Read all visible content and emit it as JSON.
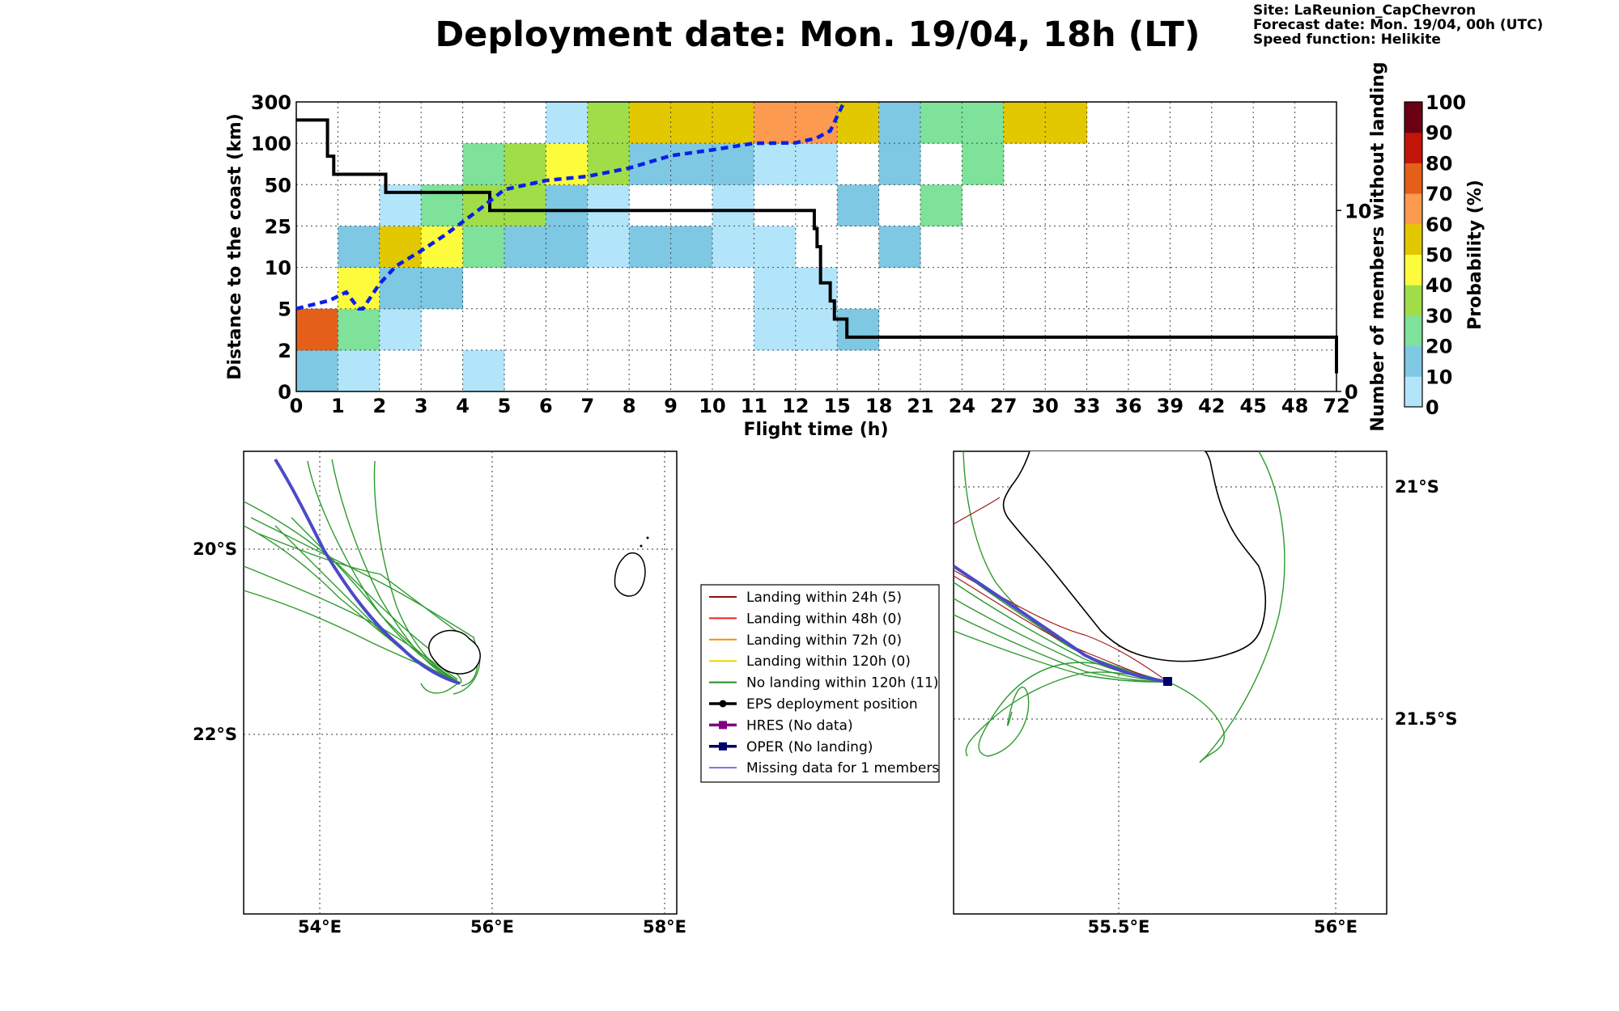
{
  "title": "Deployment date: Mon. 19/04, 18h (LT)",
  "info": {
    "site": "Site: LaReunion_CapChevron",
    "forecast": "Forecast date: Mon. 19/04, 00h (UTC)",
    "speed": "Speed function: Helikite"
  },
  "chart_data": [
    {
      "type": "heatmap",
      "xlabel": "Flight time (h)",
      "ylabel": "Distance to the coast (km)",
      "y2label": "Number of members without landing",
      "x_ticks": [
        "0",
        "1",
        "2",
        "3",
        "4",
        "5",
        "6",
        "7",
        "8",
        "9",
        "10",
        "11",
        "12",
        "15",
        "18",
        "21",
        "24",
        "27",
        "30",
        "33",
        "36",
        "39",
        "42",
        "45",
        "48",
        "72"
      ],
      "y_ticks": [
        "0",
        "2",
        "5",
        "10",
        "25",
        "50",
        "100",
        "300"
      ],
      "y2_ticks": [
        "0",
        "10"
      ],
      "y2_range": [
        0,
        16
      ],
      "grid": true,
      "colorbar": {
        "label": "Probability (%)",
        "ticks": [
          "0",
          "10",
          "20",
          "30",
          "40",
          "50",
          "60",
          "70",
          "80",
          "90",
          "100"
        ],
        "colors": [
          "#b3e5fa",
          "#7ec8e3",
          "#7ee29a",
          "#a0dd49",
          "#fcfc3c",
          "#e2c800",
          "#fc9a50",
          "#e4601a",
          "#c21507",
          "#6b0014"
        ]
      },
      "cells": [
        {
          "x": 0,
          "y": 0,
          "p": 10
        },
        {
          "x": 0,
          "y": 1,
          "p": 70
        },
        {
          "x": 1,
          "y": 0,
          "p": 0
        },
        {
          "x": 1,
          "y": 1,
          "p": 20
        },
        {
          "x": 1,
          "y": 2,
          "p": 40
        },
        {
          "x": 1,
          "y": 3,
          "p": 10
        },
        {
          "x": 2,
          "y": 1,
          "p": 0
        },
        {
          "x": 2,
          "y": 2,
          "p": 10
        },
        {
          "x": 2,
          "y": 3,
          "p": 50
        },
        {
          "x": 2,
          "y": 4,
          "p": 0
        },
        {
          "x": 3,
          "y": 2,
          "p": 10
        },
        {
          "x": 3,
          "y": 3,
          "p": 40
        },
        {
          "x": 3,
          "y": 4,
          "p": 20
        },
        {
          "x": 4,
          "y": 0,
          "p": 0
        },
        {
          "x": 4,
          "y": 3,
          "p": 20
        },
        {
          "x": 4,
          "y": 4,
          "p": 30
        },
        {
          "x": 4,
          "y": 5,
          "p": 20
        },
        {
          "x": 5,
          "y": 3,
          "p": 10
        },
        {
          "x": 5,
          "y": 4,
          "p": 30
        },
        {
          "x": 5,
          "y": 5,
          "p": 30
        },
        {
          "x": 6,
          "y": 3,
          "p": 10
        },
        {
          "x": 6,
          "y": 4,
          "p": 10
        },
        {
          "x": 6,
          "y": 5,
          "p": 40
        },
        {
          "x": 6,
          "y": 6,
          "p": 0
        },
        {
          "x": 7,
          "y": 3,
          "p": 0
        },
        {
          "x": 7,
          "y": 4,
          "p": 0
        },
        {
          "x": 7,
          "y": 5,
          "p": 30
        },
        {
          "x": 7,
          "y": 6,
          "p": 30
        },
        {
          "x": 8,
          "y": 3,
          "p": 10
        },
        {
          "x": 8,
          "y": 5,
          "p": 10
        },
        {
          "x": 8,
          "y": 6,
          "p": 50
        },
        {
          "x": 9,
          "y": 3,
          "p": 10
        },
        {
          "x": 9,
          "y": 5,
          "p": 10
        },
        {
          "x": 9,
          "y": 6,
          "p": 50
        },
        {
          "x": 10,
          "y": 3,
          "p": 0
        },
        {
          "x": 10,
          "y": 4,
          "p": 0
        },
        {
          "x": 10,
          "y": 5,
          "p": 10
        },
        {
          "x": 10,
          "y": 6,
          "p": 50
        },
        {
          "x": 11,
          "y": 1,
          "p": 0
        },
        {
          "x": 11,
          "y": 2,
          "p": 0
        },
        {
          "x": 11,
          "y": 3,
          "p": 0
        },
        {
          "x": 11,
          "y": 5,
          "p": 0
        },
        {
          "x": 11,
          "y": 6,
          "p": 60
        },
        {
          "x": 12,
          "y": 1,
          "p": 0
        },
        {
          "x": 12,
          "y": 2,
          "p": 0
        },
        {
          "x": 12,
          "y": 5,
          "p": 0
        },
        {
          "x": 12,
          "y": 6,
          "p": 60
        },
        {
          "x": 13,
          "y": 1,
          "p": 10
        },
        {
          "x": 13,
          "y": 4,
          "p": 10
        },
        {
          "x": 13,
          "y": 6,
          "p": 50
        },
        {
          "x": 14,
          "y": 3,
          "p": 10
        },
        {
          "x": 14,
          "y": 5,
          "p": 10
        },
        {
          "x": 14,
          "y": 6,
          "p": 10
        },
        {
          "x": 15,
          "y": 4,
          "p": 20
        },
        {
          "x": 15,
          "y": 6,
          "p": 20
        },
        {
          "x": 16,
          "y": 5,
          "p": 20
        },
        {
          "x": 16,
          "y": 6,
          "p": 20
        },
        {
          "x": 17,
          "y": 6,
          "p": 50
        },
        {
          "x": 18,
          "y": 6,
          "p": 50
        }
      ],
      "members_without_landing": {
        "name": "Number of members without landing",
        "x": [
          0,
          0.7,
          0.75,
          0.85,
          0.9,
          2.1,
          2.15,
          4.6,
          4.65,
          13.3,
          13.35,
          13.5,
          13.55,
          13.75,
          13.8,
          14.45,
          14.5,
          14.75,
          14.8,
          15.7,
          72
        ],
        "y": [
          15,
          15,
          13,
          13,
          12,
          12,
          11,
          11,
          10,
          10,
          9,
          9,
          8,
          8,
          6,
          6,
          5,
          5,
          4,
          3,
          1
        ]
      },
      "median_distance_km": {
        "name": "median distance",
        "x": [
          0,
          0.4,
          0.8,
          1.2,
          1.5,
          1.6,
          2.0,
          2.4,
          3.0,
          3.6,
          4.4,
          5.0,
          6.0,
          7.0,
          8.0,
          9.0,
          10.0,
          11.0,
          12.0,
          13.5,
          14.5,
          15.5
        ],
        "y": [
          5,
          5.5,
          6,
          7,
          5,
          5,
          8,
          10.5,
          16,
          22,
          35,
          47,
          55,
          60,
          70,
          85,
          92,
          100,
          102,
          125,
          160,
          300
        ]
      }
    }
  ],
  "legend": [
    {
      "label": "Landing within 24h (5)",
      "color": "#8b1010"
    },
    {
      "label": "Landing within 48h (0)",
      "color": "#ee2020"
    },
    {
      "label": "Landing within 72h (0)",
      "color": "#ff8c00"
    },
    {
      "label": "Landing within 120h (0)",
      "color": "#f0d400"
    },
    {
      "label": "No landing within 120h (11)",
      "color": "#228b22"
    },
    {
      "label": "EPS deployment position",
      "color": "#000000"
    },
    {
      "label": "HRES (No data)",
      "color": "#800080"
    },
    {
      "label": "OPER (No landing)",
      "color": "#00006b"
    },
    {
      "label": "Missing data for 1 members",
      "color": "#3a3adf"
    }
  ],
  "map_left": {
    "lon_ticks": [
      "54°E",
      "56°E",
      "58°E"
    ],
    "lat_ticks": [
      "20°S",
      "22°S"
    ]
  },
  "map_right": {
    "lon_ticks": [
      "55.5°E",
      "56°E"
    ],
    "lat_ticks": [
      "21°S",
      "21.5°S"
    ]
  }
}
